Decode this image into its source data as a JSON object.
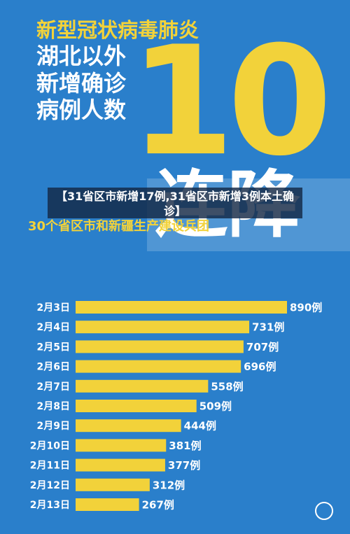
{
  "caption": "【31省区市新增17例,31省区市新增3例本土确诊】",
  "chart_data": {
    "type": "bar",
    "orientation": "horizontal",
    "title": [
      "新型冠状病毒肺炎",
      "湖北以外",
      "新增确诊",
      "病例人数"
    ],
    "headline": "10",
    "headline_sub": "连降",
    "subtitle": "30个省区市和新疆生产建设兵团",
    "categories": [
      "2月3日",
      "2月4日",
      "2月5日",
      "2月6日",
      "2月7日",
      "2月8日",
      "2月9日",
      "2月10日",
      "2月11日",
      "2月12日",
      "2月13日"
    ],
    "values": [
      890,
      731,
      707,
      696,
      558,
      509,
      444,
      381,
      377,
      312,
      267
    ],
    "value_labels": [
      "890例",
      "731例",
      "707例",
      "696例",
      "558例",
      "509例",
      "444例",
      "381例",
      "377例",
      "312例",
      "267例"
    ],
    "color": "#f2d23a"
  }
}
